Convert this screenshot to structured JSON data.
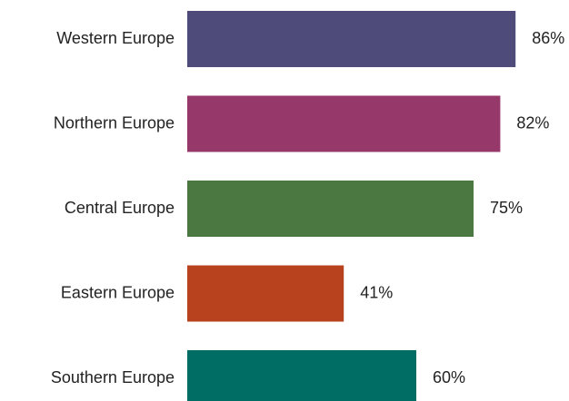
{
  "chart_data": {
    "type": "bar",
    "orientation": "horizontal",
    "categories": [
      "Western Europe",
      "Northern Europe",
      "Central Europe",
      "Eastern Europe",
      "Southern Europe"
    ],
    "values": [
      86,
      82,
      75,
      41,
      60
    ],
    "value_labels": [
      "86%",
      "82%",
      "75%",
      "41%",
      "60%"
    ],
    "colors": [
      "#4e4a7a",
      "#96386a",
      "#4b7840",
      "#b9421e",
      "#006d65"
    ],
    "value_unit": "%",
    "xlim": [
      0,
      100
    ],
    "grid": false,
    "legend": "none",
    "title": "",
    "xlabel": "",
    "ylabel": ""
  }
}
